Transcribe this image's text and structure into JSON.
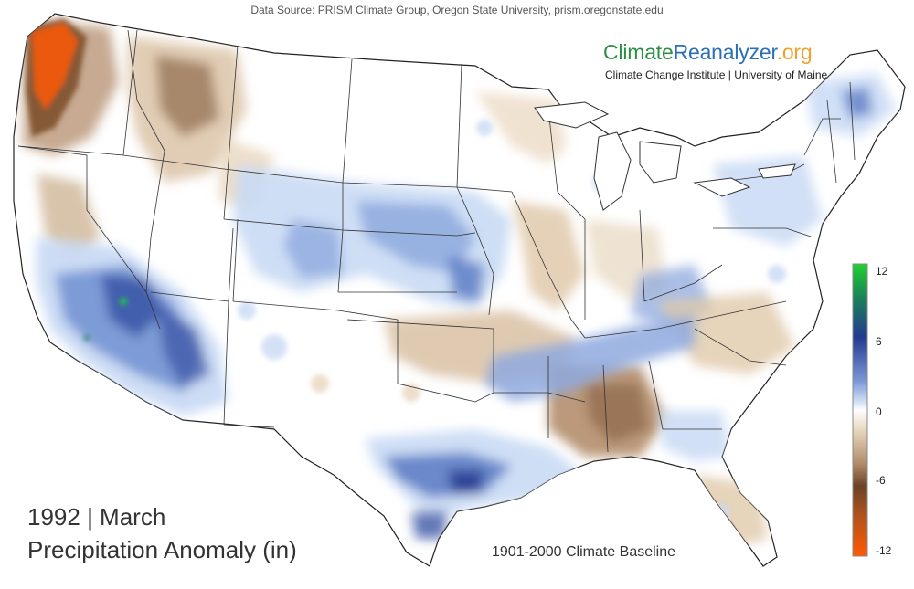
{
  "header": {
    "data_source": "Data Source: PRISM Climate Group, Oregon State University, prism.oregonstate.edu"
  },
  "brand": {
    "name_part1": "Climate",
    "name_part2": "Reanalyzer",
    "name_part3": ".org",
    "subtitle": "Climate Change Institute | University of Maine",
    "colors": {
      "part1": "#2d8f45",
      "part2": "#2c6fb6",
      "part3": "#f0a02c"
    }
  },
  "title": {
    "line1": "1992 | March",
    "line2": "Precipitation Anomaly (in)"
  },
  "baseline_label": "1901-2000 Climate Baseline",
  "legend": {
    "unit": "in",
    "ticks": [
      "12",
      "6",
      "0",
      "-6",
      "-12"
    ],
    "range": [
      -12,
      12
    ],
    "colors": {
      "very_wet": "#22cc44",
      "wet_strong": "#243a8f",
      "wet": "#6f8fd0",
      "wet_light": "#c9daf4",
      "neutral": "#ffffff",
      "dry_light": "#e9d6bd",
      "dry": "#b99675",
      "dry_strong": "#6b4226",
      "very_dry": "#f05a10"
    }
  },
  "map": {
    "region": "Contiguous United States",
    "anomaly_regions": [
      {
        "area": "Pacific Northwest coast",
        "category": "very_dry"
      },
      {
        "area": "Northern Rockies / Idaho",
        "category": "dry"
      },
      {
        "area": "Southern California / Nevada / Arizona",
        "category": "wet"
      },
      {
        "area": "Central Plains (Nebraska, Kansas, Colorado)",
        "category": "wet_light"
      },
      {
        "area": "Texas Gulf Coast",
        "category": "wet_strong"
      },
      {
        "area": "Mississippi / Alabama / Georgia",
        "category": "dry"
      },
      {
        "area": "Ozarks / Missouri",
        "category": "dry_light"
      },
      {
        "area": "Kentucky / Tennessee",
        "category": "wet"
      },
      {
        "area": "Florida peninsula",
        "category": "dry_light"
      },
      {
        "area": "New England",
        "category": "wet_light"
      }
    ]
  }
}
